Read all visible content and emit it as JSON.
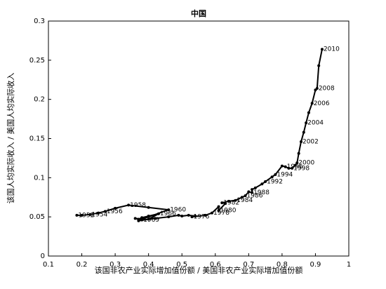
{
  "chart_data": {
    "type": "line",
    "title": "中国",
    "x_label": "该国非农产业实际增加值份额 / 美国非农产业实际增加值份额",
    "y_label": "该国人均实际收入 / 美国人均实际收入",
    "color": "#000000",
    "xlim": [
      0.1,
      1
    ],
    "xticks": [
      0.1,
      0.2,
      0.3,
      0.4,
      0.5,
      0.6,
      0.7,
      0.8,
      0.9,
      1
    ],
    "ylim": [
      0,
      0.3
    ],
    "yticks": [
      0,
      0.05,
      0.1,
      0.15,
      0.2,
      0.25,
      0.3
    ],
    "x": [
      0.185,
      0.2,
      0.225,
      0.25,
      0.27,
      0.3,
      0.34,
      0.4,
      0.46,
      0.38,
      0.36,
      0.37,
      0.38,
      0.4,
      0.43,
      0.4,
      0.37,
      0.38,
      0.42,
      0.46,
      0.49,
      0.5,
      0.52,
      0.54,
      0.53,
      0.57,
      0.59,
      0.61,
      0.61,
      0.63,
      0.62,
      0.64,
      0.66,
      0.68,
      0.69,
      0.7,
      0.71,
      0.71,
      0.72,
      0.74,
      0.75,
      0.77,
      0.78,
      0.8,
      0.81,
      0.82,
      0.83,
      0.84,
      0.845,
      0.85,
      0.857,
      0.865,
      0.872,
      0.88,
      0.89,
      0.9,
      0.905,
      0.91,
      0.92
    ],
    "y": [
      0.052,
      0.052,
      0.053,
      0.055,
      0.057,
      0.061,
      0.065,
      0.062,
      0.059,
      0.047,
      0.048,
      0.047,
      0.049,
      0.051,
      0.054,
      0.047,
      0.045,
      0.046,
      0.048,
      0.05,
      0.052,
      0.051,
      0.052,
      0.051,
      0.05,
      0.052,
      0.055,
      0.063,
      0.058,
      0.067,
      0.068,
      0.07,
      0.071,
      0.075,
      0.077,
      0.082,
      0.081,
      0.085,
      0.087,
      0.092,
      0.095,
      0.101,
      0.104,
      0.115,
      0.114,
      0.112,
      0.112,
      0.116,
      0.119,
      0.131,
      0.146,
      0.158,
      0.17,
      0.183,
      0.195,
      0.212,
      0.214,
      0.243,
      0.264
    ],
    "labels": [
      "1952",
      null,
      "1954",
      null,
      "1956",
      null,
      "1958",
      null,
      "1960",
      null,
      null,
      null,
      null,
      null,
      "1966",
      null,
      null,
      "1969",
      null,
      null,
      null,
      null,
      null,
      null,
      "1976",
      null,
      "1978",
      null,
      "1980",
      null,
      "1982",
      null,
      "1984",
      null,
      "1986",
      null,
      "1988",
      null,
      null,
      null,
      "1992",
      null,
      "1994",
      null,
      "1996",
      null,
      "1998",
      null,
      "2000",
      null,
      "2002",
      null,
      "2004",
      null,
      "2006",
      null,
      "2008",
      null,
      "2010"
    ]
  }
}
